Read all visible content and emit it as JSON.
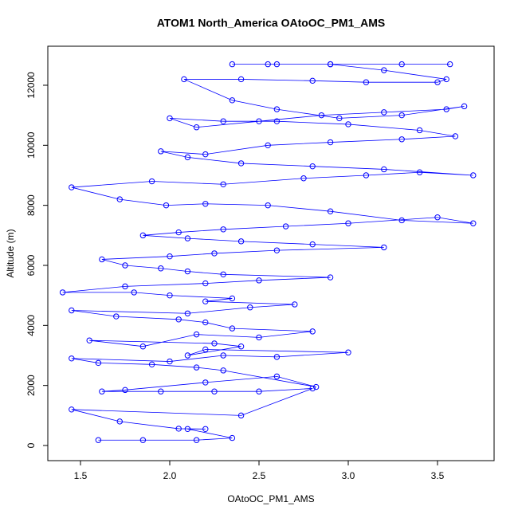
{
  "chart_data": {
    "type": "line",
    "markers": true,
    "title": "ATOM1 North_America OAtoOC_PM1_AMS",
    "x_label": "OAtoOC_PM1_AMS",
    "y_label": "Altitude (m)",
    "color": "#0000ff",
    "xlim": [
      1.317,
      3.817
    ],
    "ylim": [
      -504,
      13300
    ],
    "xticks": [
      1.5,
      {
        "value": 2,
        "label": "2.0"
      },
      2.5,
      {
        "value": 3,
        "label": "3.0"
      },
      3.5
    ],
    "yticks": [
      0,
      2000,
      4000,
      6000,
      8000,
      10000,
      12000
    ],
    "x": [
      1.6,
      1.85,
      2.15,
      2.35,
      2.1,
      2.2,
      2.05,
      1.72,
      1.45,
      2.4,
      2.8,
      2.5,
      2.25,
      1.95,
      1.62,
      1.75,
      2.2,
      2.6,
      2.82,
      2.3,
      2.15,
      1.9,
      1.6,
      1.45,
      2.0,
      2.3,
      2.6,
      3.0,
      2.2,
      2.1,
      2.4,
      2.25,
      1.55,
      1.85,
      2.15,
      2.5,
      2.8,
      2.35,
      2.2,
      2.05,
      1.7,
      1.45,
      2.1,
      2.45,
      2.7,
      2.2,
      2.35,
      2.0,
      1.8,
      1.4,
      1.75,
      2.2,
      2.5,
      2.9,
      2.3,
      2.1,
      1.95,
      1.75,
      1.62,
      2.0,
      2.25,
      2.6,
      3.2,
      2.8,
      2.4,
      2.1,
      1.85,
      2.05,
      2.3,
      2.65,
      3.0,
      3.5,
      3.7,
      3.3,
      2.9,
      2.55,
      2.2,
      1.98,
      1.72,
      1.45,
      1.9,
      2.3,
      2.75,
      3.1,
      3.4,
      3.7,
      3.2,
      2.8,
      2.4,
      2.1,
      1.95,
      2.2,
      2.55,
      2.9,
      3.3,
      3.6,
      3.4,
      3.0,
      2.6,
      2.3,
      2.0,
      2.15,
      2.5,
      2.85,
      3.2,
      3.55,
      3.65,
      3.3,
      2.95,
      2.6,
      2.35,
      2.08,
      2.4,
      2.8,
      3.1,
      3.5,
      3.55,
      3.2,
      2.9,
      2.6,
      2.35,
      2.55,
      2.9,
      3.3,
      3.57
    ],
    "values": [
      180,
      180,
      180,
      250,
      550,
      550,
      560,
      800,
      1200,
      1000,
      1900,
      1800,
      1800,
      1800,
      1800,
      1850,
      2100,
      2300,
      1950,
      2500,
      2600,
      2700,
      2750,
      2900,
      2800,
      3000,
      2950,
      3100,
      3200,
      3000,
      3300,
      3400,
      3500,
      3300,
      3700,
      3600,
      3800,
      3900,
      4100,
      4200,
      4300,
      4500,
      4400,
      4600,
      4700,
      4800,
      4900,
      5000,
      5100,
      5100,
      5300,
      5400,
      5500,
      5600,
      5700,
      5800,
      5900,
      6000,
      6200,
      6300,
      6400,
      6500,
      6600,
      6700,
      6800,
      6900,
      7000,
      7100,
      7200,
      7300,
      7400,
      7600,
      7400,
      7500,
      7800,
      8000,
      8050,
      8000,
      8200,
      8600,
      8800,
      8700,
      8900,
      9000,
      9100,
      9000,
      9200,
      9300,
      9400,
      9600,
      9800,
      9700,
      10000,
      10100,
      10200,
      10300,
      10500,
      10700,
      10800,
      10800,
      10900,
      10600,
      10800,
      11000,
      11100,
      11200,
      11300,
      11000,
      10900,
      11200,
      11500,
      12200,
      12200,
      12150,
      12100,
      12100,
      12200,
      12500,
      12700,
      12700,
      12700,
      12700,
      12700,
      12700,
      12700
    ]
  }
}
